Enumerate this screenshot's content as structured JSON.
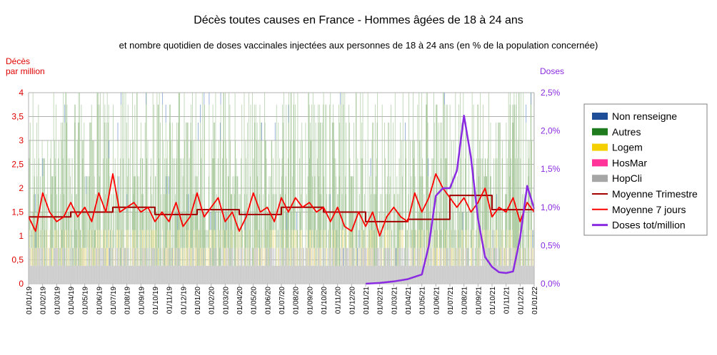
{
  "chart_data": {
    "type": "bar",
    "title": "Décès toutes causes en France - Hommes âgées de 18 à 24 ans",
    "subtitle": "et nombre quotidien de doses vaccinales injectées aux personnes de 18 à 24 ans (en % de la population concernée)",
    "ylabel_left": [
      "Décès",
      "par million"
    ],
    "ylabel_right": "Doses",
    "ylim_left": [
      0,
      4
    ],
    "ylim_right": [
      0,
      0.025
    ],
    "y_ticks_left": [
      "0",
      "0,5",
      "1",
      "1,5",
      "2",
      "2,5",
      "3",
      "3,5",
      "4"
    ],
    "y_ticks_right": [
      "0,0%",
      "0,5%",
      "1,0%",
      "1,5%",
      "2,0%",
      "2,5%"
    ],
    "x_ticks": [
      "01/01/19",
      "01/02/19",
      "01/03/19",
      "01/04/19",
      "01/05/19",
      "01/06/19",
      "01/07/19",
      "01/08/19",
      "01/09/19",
      "01/10/19",
      "01/11/19",
      "01/12/19",
      "01/01/20",
      "01/02/20",
      "01/03/20",
      "01/04/20",
      "01/05/20",
      "01/06/20",
      "01/07/20",
      "01/08/20",
      "01/09/20",
      "01/10/20",
      "01/11/20",
      "01/12/20",
      "01/01/21",
      "01/02/21",
      "01/03/21",
      "01/04/21",
      "01/05/21",
      "01/06/21",
      "01/07/21",
      "01/08/21",
      "01/09/21",
      "01/10/21",
      "01/11/21",
      "01/12/21",
      "01/01/22"
    ],
    "legend": [
      "Non renseigne",
      "Autres",
      "Logem",
      "HosMar",
      "HopCli",
      "Moyenne Trimestre",
      "Moyenne 7 jours",
      "Doses tot/million"
    ],
    "legend_position": "right",
    "colors": {
      "Non renseigne": "#1f4e99",
      "Autres": "#1e7b1e",
      "Logem": "#f5d000",
      "HosMar": "#ff3399",
      "HopCli": "#a6a6a6",
      "Moyenne Trimestre": "#a00000",
      "Moyenne 7 jours": "#ff0000",
      "Doses tot/million": "#8a2be2"
    },
    "grid": true,
    "series": [
      {
        "name": "Moyenne Trimestre",
        "x_month_index": [
          0,
          3,
          6,
          9,
          12,
          15,
          18,
          21,
          24,
          27,
          30,
          33,
          36
        ],
        "values": [
          1.4,
          1.5,
          1.6,
          1.45,
          1.55,
          1.45,
          1.6,
          1.5,
          1.3,
          1.35,
          1.85,
          1.55,
          1.55
        ]
      },
      {
        "name": "Moyenne 7 jours",
        "x_month_index": [
          0,
          0.5,
          1,
          1.5,
          2,
          2.5,
          3,
          3.5,
          4,
          4.5,
          5,
          5.5,
          6,
          6.5,
          7,
          7.5,
          8,
          8.5,
          9,
          9.5,
          10,
          10.5,
          11,
          11.5,
          12,
          12.5,
          13,
          13.5,
          14,
          14.5,
          15,
          15.5,
          16,
          16.5,
          17,
          17.5,
          18,
          18.5,
          19,
          19.5,
          20,
          20.5,
          21,
          21.5,
          22,
          22.5,
          23,
          23.5,
          24,
          24.5,
          25,
          25.5,
          26,
          26.5,
          27,
          27.5,
          28,
          28.5,
          29,
          29.5,
          30,
          30.5,
          31,
          31.5,
          32,
          32.5,
          33,
          33.5,
          34,
          34.5,
          35,
          35.5,
          36
        ],
        "values": [
          1.4,
          1.1,
          1.9,
          1.5,
          1.3,
          1.4,
          1.7,
          1.4,
          1.6,
          1.3,
          1.9,
          1.5,
          2.3,
          1.5,
          1.6,
          1.7,
          1.5,
          1.6,
          1.3,
          1.5,
          1.3,
          1.7,
          1.2,
          1.4,
          1.9,
          1.4,
          1.6,
          1.8,
          1.3,
          1.5,
          1.1,
          1.4,
          1.9,
          1.5,
          1.6,
          1.3,
          1.8,
          1.5,
          1.8,
          1.6,
          1.7,
          1.5,
          1.6,
          1.3,
          1.6,
          1.2,
          1.1,
          1.5,
          1.2,
          1.5,
          1.0,
          1.4,
          1.6,
          1.4,
          1.3,
          1.9,
          1.5,
          1.8,
          2.3,
          2.0,
          1.8,
          1.6,
          1.8,
          1.5,
          1.7,
          2.0,
          1.4,
          1.6,
          1.5,
          1.8,
          1.3,
          1.7,
          1.5
        ]
      },
      {
        "name": "Doses tot/million",
        "axis": "right",
        "x_month_index": [
          24,
          25,
          26,
          27,
          28,
          28.5,
          29,
          29.5,
          30,
          30.5,
          31,
          31.5,
          32,
          32.5,
          33,
          33.5,
          34,
          34.5,
          35,
          35.5,
          36
        ],
        "values": [
          0.0,
          0.0001,
          0.0003,
          0.0006,
          0.0012,
          0.005,
          0.0115,
          0.0125,
          0.0125,
          0.0148,
          0.022,
          0.0165,
          0.0085,
          0.0035,
          0.0022,
          0.0015,
          0.0014,
          0.0016,
          0.006,
          0.0128,
          0.0098
        ]
      }
    ]
  }
}
